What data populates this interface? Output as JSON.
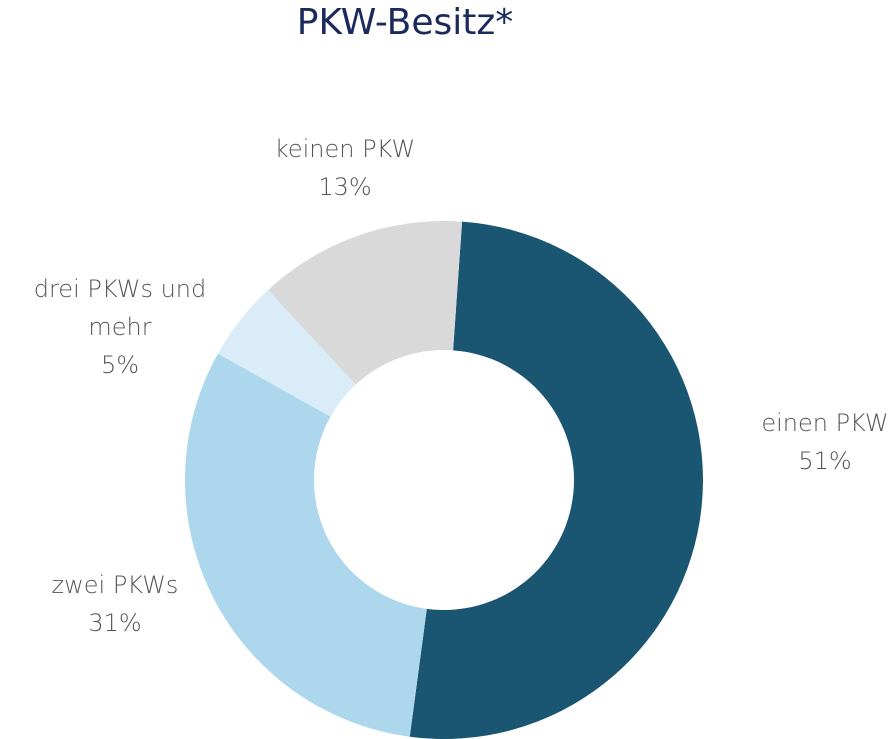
{
  "chart_data": {
    "type": "pie",
    "title": "PKW-Besitz*",
    "categories": [
      "einen PKW",
      "zwei PKWs",
      "drei PKWs und mehr",
      "keinen PKW"
    ],
    "values": [
      51,
      31,
      5,
      13
    ],
    "value_labels": [
      "51%",
      "31%",
      "5%",
      "13%"
    ],
    "colors": [
      "#1a5672",
      "#acd7ec",
      "#d9ecf7",
      "#d9d9d9"
    ]
  }
}
